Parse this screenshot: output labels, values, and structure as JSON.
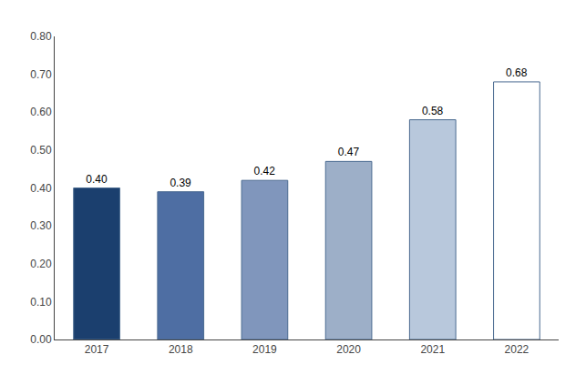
{
  "chart_data": {
    "type": "bar",
    "categories": [
      "2017",
      "2018",
      "2019",
      "2020",
      "2021",
      "2022"
    ],
    "values": [
      0.4,
      0.39,
      0.42,
      0.47,
      0.58,
      0.68
    ],
    "value_labels": [
      "0.40",
      "0.39",
      "0.42",
      "0.47",
      "0.58",
      "0.68"
    ],
    "data_labels": true,
    "colors": [
      "#1b3f6e",
      "#4e6ea3",
      "#8096bc",
      "#9dafc8",
      "#b8c8dc",
      "#ffffff"
    ],
    "ylim": [
      0.0,
      0.8
    ],
    "yticks": [
      {
        "value": 0.0,
        "label": "0.00"
      },
      {
        "value": 0.1,
        "label": "0.10"
      },
      {
        "value": 0.2,
        "label": "0.20"
      },
      {
        "value": 0.3,
        "label": "0.30"
      },
      {
        "value": 0.4,
        "label": "0.40"
      },
      {
        "value": 0.5,
        "label": "0.50"
      },
      {
        "value": 0.6,
        "label": "0.60"
      },
      {
        "value": 0.7,
        "label": "0.70"
      },
      {
        "value": 0.8,
        "label": "0.80"
      }
    ],
    "grid": false
  }
}
